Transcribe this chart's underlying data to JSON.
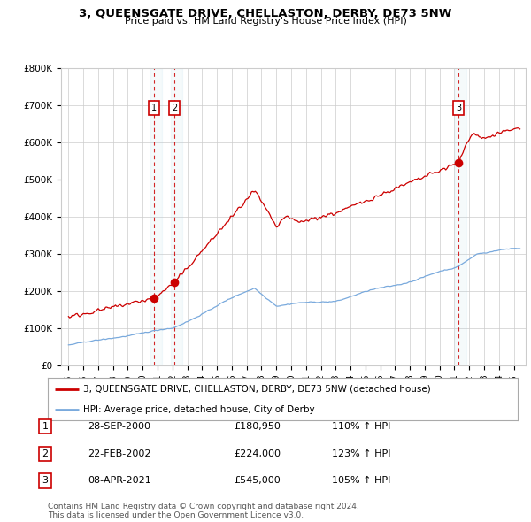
{
  "title": "3, QUEENSGATE DRIVE, CHELLASTON, DERBY, DE73 5NW",
  "subtitle": "Price paid vs. HM Land Registry's House Price Index (HPI)",
  "legend_property": "3, QUEENSGATE DRIVE, CHELLASTON, DERBY, DE73 5NW (detached house)",
  "legend_hpi": "HPI: Average price, detached house, City of Derby",
  "property_color": "#cc0000",
  "hpi_color": "#7aaadd",
  "background_color": "#ffffff",
  "plot_bg_color": "#ffffff",
  "grid_color": "#cccccc",
  "footnote": "Contains HM Land Registry data © Crown copyright and database right 2024.\nThis data is licensed under the Open Government Licence v3.0.",
  "transactions": [
    {
      "label": "1",
      "date": "28-SEP-2000",
      "price": 180950,
      "pct": "110%",
      "arrow": "↑",
      "x_val": 2000.75
    },
    {
      "label": "2",
      "date": "22-FEB-2002",
      "price": 224000,
      "pct": "123%",
      "arrow": "↑",
      "x_val": 2002.13
    },
    {
      "label": "3",
      "date": "08-APR-2021",
      "price": 545000,
      "pct": "105%",
      "arrow": "↑",
      "x_val": 2021.27
    }
  ],
  "ylim": [
    0,
    800000
  ],
  "yticks": [
    0,
    100000,
    200000,
    300000,
    400000,
    500000,
    600000,
    700000,
    800000
  ],
  "ytick_labels": [
    "£0",
    "£100K",
    "£200K",
    "£300K",
    "£400K",
    "£500K",
    "£600K",
    "£700K",
    "£800K"
  ],
  "xlim_start": 1994.5,
  "xlim_end": 2025.8
}
